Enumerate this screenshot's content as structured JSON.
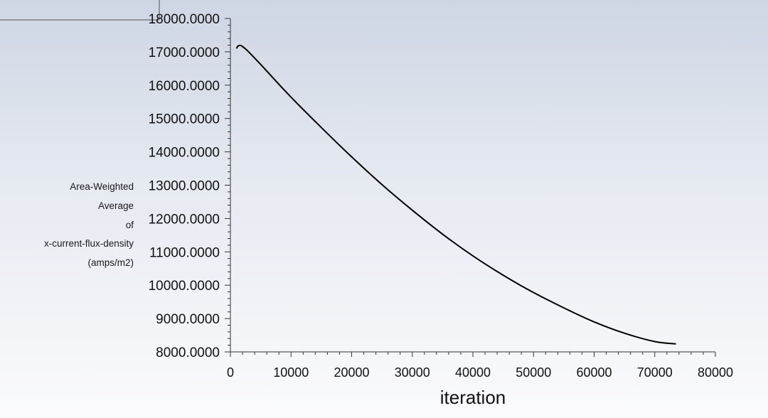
{
  "chart_data": {
    "type": "line",
    "title": "",
    "xlabel": "iteration",
    "ylabel_lines": [
      "Area-Weighted",
      "Average",
      "of",
      "x-current-flux-density",
      "(amps/m2)"
    ],
    "xlim": [
      0,
      80000
    ],
    "ylim": [
      8000,
      18000
    ],
    "x_ticks": [
      0,
      10000,
      20000,
      30000,
      40000,
      50000,
      60000,
      70000,
      80000
    ],
    "y_ticks": [
      8000,
      9000,
      10000,
      11000,
      12000,
      13000,
      14000,
      15000,
      16000,
      17000,
      18000
    ],
    "x_tick_labels": [
      "0",
      "10000",
      "20000",
      "30000",
      "40000",
      "50000",
      "60000",
      "70000",
      "80000"
    ],
    "y_tick_labels": [
      "8000.0000",
      "9000.0000",
      "10000.0000",
      "11000.0000",
      "12000.0000",
      "13000.0000",
      "14000.0000",
      "15000.0000",
      "16000.0000",
      "17000.0000",
      "18000.0000"
    ],
    "grid": false,
    "series": [
      {
        "color": "#000000",
        "x": [
          1000,
          1300,
          1700,
          2200,
          3000,
          5000,
          10000,
          15000,
          20000,
          25000,
          30000,
          35000,
          40000,
          45000,
          50000,
          55000,
          60000,
          65000,
          70000,
          73500
        ],
        "y": [
          17100,
          17180,
          17190,
          17130,
          17000,
          16620,
          15640,
          14730,
          13850,
          13020,
          12250,
          11530,
          10880,
          10300,
          9780,
          9320,
          8900,
          8560,
          8310,
          8240
        ]
      }
    ]
  }
}
